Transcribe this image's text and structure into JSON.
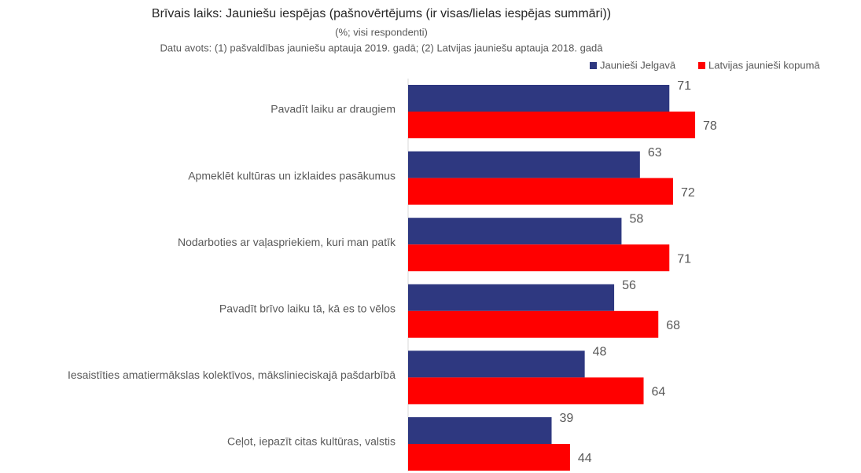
{
  "chart_data": {
    "type": "bar",
    "orientation": "horizontal",
    "title": "Brīvais laiks: Jauniešu iespējas (pašnovērtējums (ir visas/lielas iespējas summāri))",
    "subtitle": "(%; visi respondenti)",
    "source": "Datu avots: (1) pašvaldības jauniešu aptauja 2019. gadā; (2) Latvijas jauniešu aptauja 2018. gadā",
    "legend": "top-right",
    "categories": [
      "Pavadīt laiku ar draugiem",
      "Apmeklēt kultūras un izklaides pasākumus",
      "Nodarboties ar vaļaspriekiem, kuri man patīk",
      "Pavadīt brīvo laiku tā, kā es to vēlos",
      "Iesaistīties amatiermākslas kolektīvos, mākslinieciskajā pašdarbībā",
      "Ceļot, iepazīt citas kultūras, valstis"
    ],
    "series": [
      {
        "name": "Jaunieši Jelgavā",
        "color": "#2e3880",
        "values": [
          71,
          63,
          58,
          56,
          48,
          39
        ]
      },
      {
        "name": "Latvijas jaunieši kopumā",
        "color": "#ff0000",
        "values": [
          78,
          72,
          71,
          68,
          64,
          44
        ]
      }
    ]
  }
}
